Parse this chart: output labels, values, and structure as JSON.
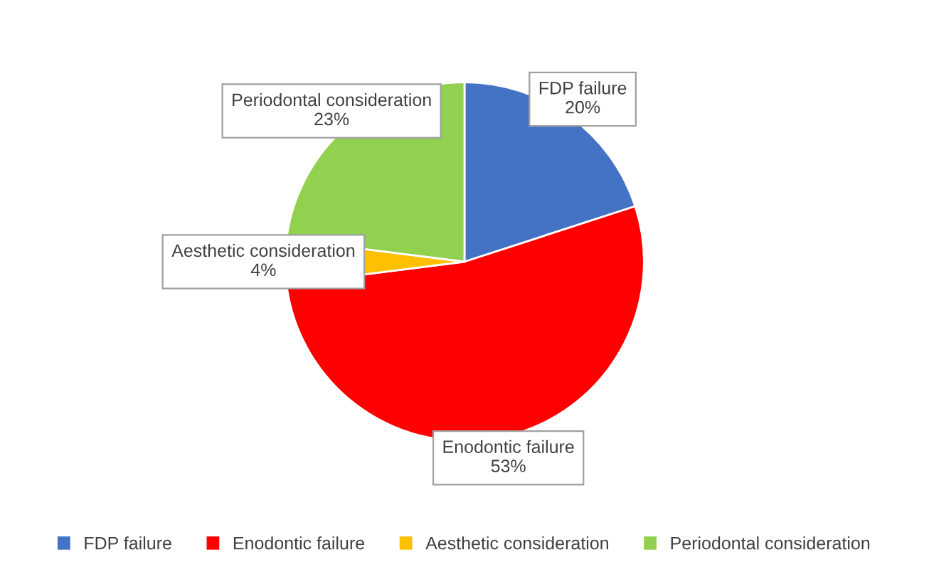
{
  "chart_data": {
    "type": "pie",
    "categories": [
      "FDP failure",
      "Enodontic failure",
      "Aesthetic consideration",
      "Periodontal consideration"
    ],
    "values": [
      20,
      53,
      4,
      23
    ],
    "value_labels": [
      "20%",
      "53%",
      "4%",
      "23%"
    ],
    "colors": [
      "#4472c4",
      "#ff0000",
      "#ffc000",
      "#92d050"
    ],
    "legend": "bottom"
  }
}
